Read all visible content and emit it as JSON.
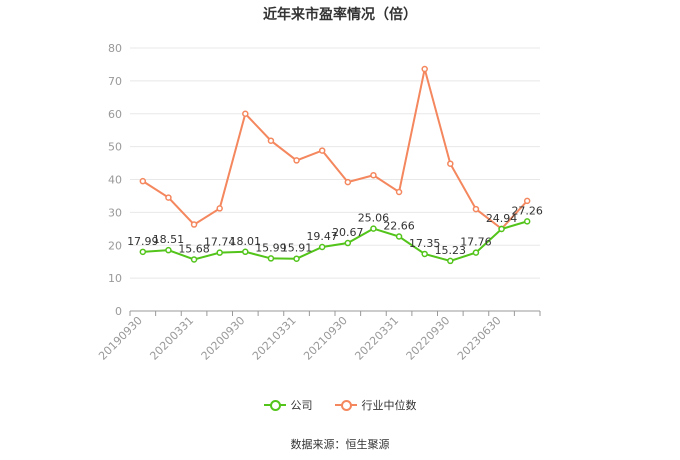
{
  "title": "近年来市盈率情况（倍）",
  "source": "数据来源：恒生聚源",
  "colors": {
    "company": "#52c41a",
    "industry": "#f4875e",
    "grid": "#e8e8e8",
    "axis": "#999999",
    "label": "#333333"
  },
  "legend": {
    "company": "公司",
    "industry": "行业中位数",
    "position": "bottom"
  },
  "chart_data": {
    "type": "line",
    "title": "近年来市盈率情况（倍）",
    "xlabel": "",
    "ylabel": "",
    "ylim": [
      0,
      80
    ],
    "yticks": [
      0,
      10,
      20,
      30,
      40,
      50,
      60,
      70,
      80
    ],
    "grid": true,
    "legend_position": "bottom",
    "categories": [
      "20190930",
      "",
      "20200331",
      "",
      "20200930",
      "",
      "20210331",
      "",
      "20210930",
      "",
      "20220331",
      "",
      "20220930",
      "",
      "20230630",
      ""
    ],
    "series": [
      {
        "name": "公司",
        "values": [
          17.99,
          18.51,
          15.68,
          17.74,
          18.01,
          15.99,
          15.91,
          19.47,
          20.67,
          25.06,
          22.66,
          17.35,
          15.23,
          17.76,
          24.94,
          27.26
        ],
        "labels": [
          "17.99",
          "18.51",
          "15.68",
          "17.74",
          "18.01",
          "15.99",
          "15.91",
          "19.47",
          "20.67",
          "25.06",
          "22.66",
          "17.35",
          "15.23",
          "17.76",
          "24.94",
          "27.26"
        ]
      },
      {
        "name": "行业中位数",
        "values": [
          39.5,
          34.5,
          26.3,
          31.2,
          60.0,
          51.8,
          45.8,
          48.8,
          39.2,
          41.3,
          36.2,
          73.6,
          44.8,
          31.0,
          25.0,
          33.5
        ]
      }
    ]
  }
}
